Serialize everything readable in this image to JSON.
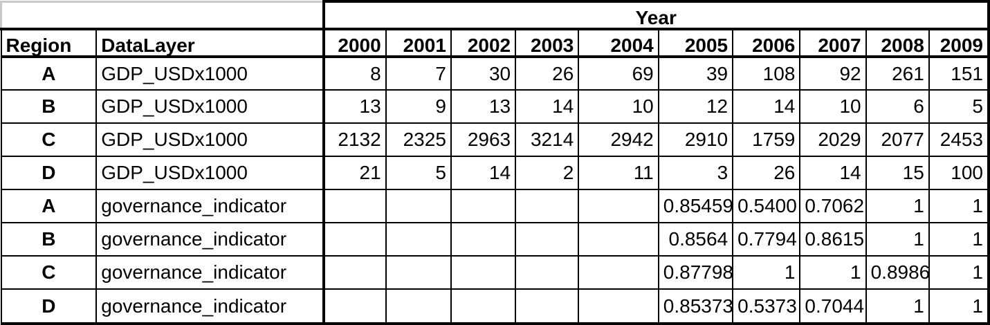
{
  "year_header": "Year",
  "columns": {
    "region": "Region",
    "layer": "DataLayer",
    "years": [
      "2000",
      "2001",
      "2002",
      "2003",
      "2004",
      "2005",
      "2006",
      "2007",
      "2008",
      "2009"
    ]
  },
  "rows": [
    {
      "region": "A",
      "layer": "GDP_USDx1000",
      "values": [
        "8",
        "7",
        "30",
        "26",
        "69",
        "39",
        "108",
        "92",
        "261",
        "151"
      ]
    },
    {
      "region": "B",
      "layer": "GDP_USDx1000",
      "values": [
        "13",
        "9",
        "13",
        "14",
        "10",
        "12",
        "14",
        "10",
        "6",
        "5"
      ]
    },
    {
      "region": "C",
      "layer": "GDP_USDx1000",
      "values": [
        "2132",
        "2325",
        "2963",
        "3214",
        "2942",
        "2910",
        "1759",
        "2029",
        "2077",
        "2453"
      ]
    },
    {
      "region": "D",
      "layer": "GDP_USDx1000",
      "values": [
        "21",
        "5",
        "14",
        "2",
        "11",
        "3",
        "26",
        "14",
        "15",
        "100"
      ]
    },
    {
      "region": "A",
      "layer": "governance_indicator",
      "values": [
        "",
        "",
        "",
        "",
        "",
        "0.85459",
        "0.5400",
        "0.7062",
        "1",
        "1"
      ]
    },
    {
      "region": "B",
      "layer": "governance_indicator",
      "values": [
        "",
        "",
        "",
        "",
        "",
        "0.8564",
        "0.7794",
        "0.8615",
        "1",
        "1"
      ]
    },
    {
      "region": "C",
      "layer": "governance_indicator",
      "values": [
        "",
        "",
        "",
        "",
        "",
        "0.87798",
        "1",
        "1",
        "0.8986",
        "1"
      ]
    },
    {
      "region": "D",
      "layer": "governance_indicator",
      "values": [
        "",
        "",
        "",
        "",
        "",
        "0.85373",
        "0.5373",
        "0.7044",
        "1",
        "1"
      ]
    }
  ]
}
